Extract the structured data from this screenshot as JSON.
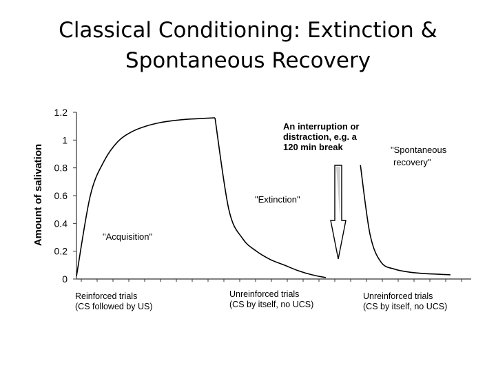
{
  "title": {
    "line1": "Classical Conditioning: Extinction &",
    "line2": "Spontaneous Recovery"
  },
  "chart_data": {
    "type": "line",
    "title": "Classical Conditioning: Extinction & Spontaneous Recovery",
    "ylabel": "Amount of salivation",
    "ylim": [
      0,
      1.2
    ],
    "yticks": [
      "0",
      "0.2",
      "0.4",
      "0.6",
      "0.8",
      "1",
      "1.2"
    ],
    "grid": false,
    "phases": [
      {
        "name": "Acquisition",
        "label": "\"Acquisition\"",
        "xlabel_line1": "Reinforced trials",
        "xlabel_line2": "(CS followed by US)"
      },
      {
        "name": "Extinction",
        "label": "\"Extinction\"",
        "xlabel_line1": "Unreinforced trials",
        "xlabel_line2": "(CS by itself, no UCS)"
      },
      {
        "name": "Spontaneous recovery",
        "label_line1": "\"Spontaneous",
        "label_line2": "recovery\"",
        "xlabel_line1": "Unreinforced trials",
        "xlabel_line2": "(CS by itself, no UCS)"
      }
    ],
    "annotation": {
      "line1": "An interruption or",
      "line2": "distraction, e.g. a",
      "line3": "120 min break"
    },
    "series": [
      {
        "segment": "acquisition",
        "points": [
          [
            0,
            0.02
          ],
          [
            1,
            0.6
          ],
          [
            2,
            0.85
          ],
          [
            3,
            0.99
          ],
          [
            4,
            1.06
          ],
          [
            5,
            1.1
          ],
          [
            6,
            1.125
          ],
          [
            7,
            1.14
          ],
          [
            8,
            1.15
          ],
          [
            9,
            1.155
          ],
          [
            10,
            1.16
          ]
        ]
      },
      {
        "segment": "extinction",
        "points": [
          [
            10,
            1.16
          ],
          [
            11,
            0.5
          ],
          [
            12,
            0.29
          ],
          [
            13,
            0.2
          ],
          [
            14,
            0.14
          ],
          [
            15,
            0.1
          ],
          [
            16,
            0.06
          ],
          [
            17,
            0.03
          ],
          [
            18,
            0.01
          ]
        ]
      },
      {
        "segment": "spontaneous-recovery",
        "points": [
          [
            20.5,
            0.82
          ],
          [
            21.2,
            0.32
          ],
          [
            22,
            0.12
          ],
          [
            23,
            0.07
          ],
          [
            24,
            0.05
          ],
          [
            25,
            0.04
          ],
          [
            26,
            0.035
          ],
          [
            27,
            0.03
          ]
        ]
      }
    ],
    "xlim": [
      0,
      28.5
    ]
  }
}
